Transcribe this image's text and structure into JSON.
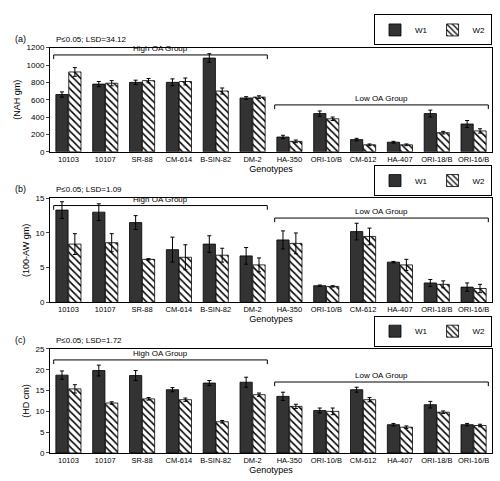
{
  "chart_data": [
    {
      "type": "bar",
      "panel": "(a)",
      "annotation": "P≤0.05; LSD=34.12",
      "y_label": "(NAH gm)",
      "x_label": "Genotypes",
      "categories": [
        "10103",
        "10107",
        "SR-88",
        "CM-614",
        "B-SIN-82",
        "DM-2",
        "HA-350",
        "ORI-10/B",
        "CM-612",
        "HA-407",
        "ORI-18/B",
        "ORI-16/B"
      ],
      "groups": [
        {
          "label": "High OA Group",
          "first": "10103",
          "last": "DM-2"
        },
        {
          "label": "Low OA Group",
          "first": "HA-350",
          "last": "ORI-16/B"
        }
      ],
      "series": [
        {
          "name": "W1",
          "color": "#333333",
          "marker": "solid",
          "values": [
            660,
            780,
            800,
            800,
            1080,
            620,
            170,
            440,
            140,
            110,
            440,
            320
          ],
          "errors": [
            30,
            30,
            25,
            40,
            50,
            15,
            20,
            30,
            15,
            10,
            40,
            40
          ]
        },
        {
          "name": "W2",
          "color": "#000000",
          "marker": "hatched",
          "values": [
            920,
            790,
            820,
            810,
            700,
            630,
            120,
            380,
            80,
            80,
            220,
            240
          ],
          "errors": [
            50,
            30,
            25,
            40,
            35,
            15,
            15,
            20,
            10,
            10,
            15,
            25
          ]
        }
      ],
      "ylim": [
        0,
        1200
      ],
      "yticks": [
        0,
        200,
        400,
        600,
        800,
        1000,
        1200
      ],
      "legend": "top right",
      "grid": false
    },
    {
      "type": "bar",
      "panel": "(b)",
      "annotation": "P≤0.05; LSD=1.09",
      "y_label": "(100-AW gm)",
      "x_label": "Genotypes",
      "categories": [
        "10103",
        "10107",
        "SR-88",
        "CM-614",
        "B-SIN-82",
        "DM-2",
        "HA-350",
        "ORI-10/B",
        "CM-612",
        "HA-407",
        "ORI-18/B",
        "ORI-16/B"
      ],
      "groups": [
        {
          "label": "High OA Group",
          "first": "10103",
          "last": "DM-2"
        },
        {
          "label": "Low OA Group",
          "first": "HA-350",
          "last": "ORI-16/B"
        }
      ],
      "series": [
        {
          "name": "W1",
          "color": "#333333",
          "marker": "solid",
          "values": [
            13.3,
            13.0,
            11.5,
            7.6,
            8.4,
            6.7,
            9.0,
            2.4,
            10.2,
            5.8,
            2.8,
            2.2
          ],
          "errors": [
            1.2,
            1.2,
            1.0,
            1.8,
            1.2,
            1.2,
            1.3,
            0.1,
            1.2,
            0.1,
            0.5,
            0.6
          ]
        },
        {
          "name": "W2",
          "color": "#000000",
          "marker": "hatched",
          "values": [
            8.4,
            8.6,
            6.2,
            6.5,
            6.8,
            5.4,
            8.5,
            2.3,
            9.5,
            5.4,
            2.6,
            2.0
          ],
          "errors": [
            1.5,
            1.3,
            0.1,
            1.8,
            1.0,
            1.0,
            1.5,
            0.1,
            1.2,
            0.8,
            0.5,
            0.6
          ]
        }
      ],
      "ylim": [
        0,
        15
      ],
      "yticks": [
        0,
        5,
        10,
        15
      ],
      "legend": "top right",
      "grid": false
    },
    {
      "type": "bar",
      "panel": "(c)",
      "annotation": "P≤0.05; LSD=1.72",
      "y_label": "(HD cm)",
      "x_label": "Genotypes",
      "categories": [
        "10103",
        "10107",
        "SR-88",
        "CM-614",
        "B-SIN-82",
        "DM-2",
        "HA-350",
        "ORI-10/B",
        "CM-612",
        "HA-407",
        "ORI-18/B",
        "ORI-16/B"
      ],
      "groups": [
        {
          "label": "High OA Group",
          "first": "10103",
          "last": "DM-2"
        },
        {
          "label": "Low OA Group",
          "first": "HA-350",
          "last": "ORI-16/B"
        }
      ],
      "series": [
        {
          "name": "W1",
          "color": "#333333",
          "marker": "solid",
          "values": [
            18.7,
            19.8,
            18.6,
            15.2,
            16.8,
            17.0,
            13.6,
            10.2,
            15.2,
            6.8,
            11.6,
            6.8
          ],
          "errors": [
            1.0,
            1.3,
            1.2,
            0.5,
            0.6,
            1.2,
            1.0,
            0.6,
            0.6,
            0.3,
            0.8,
            0.3
          ]
        },
        {
          "name": "W2",
          "color": "#000000",
          "marker": "hatched",
          "values": [
            15.4,
            12.0,
            13.0,
            12.8,
            7.5,
            14.0,
            11.2,
            10.0,
            12.8,
            6.2,
            9.8,
            6.6
          ],
          "errors": [
            1.0,
            0.3,
            0.3,
            0.4,
            0.3,
            0.4,
            0.5,
            0.8,
            0.5,
            0.3,
            0.3,
            0.3
          ]
        }
      ],
      "ylim": [
        0,
        25
      ],
      "yticks": [
        0,
        5,
        10,
        15,
        20,
        25
      ],
      "legend": "top right",
      "grid": false
    }
  ]
}
